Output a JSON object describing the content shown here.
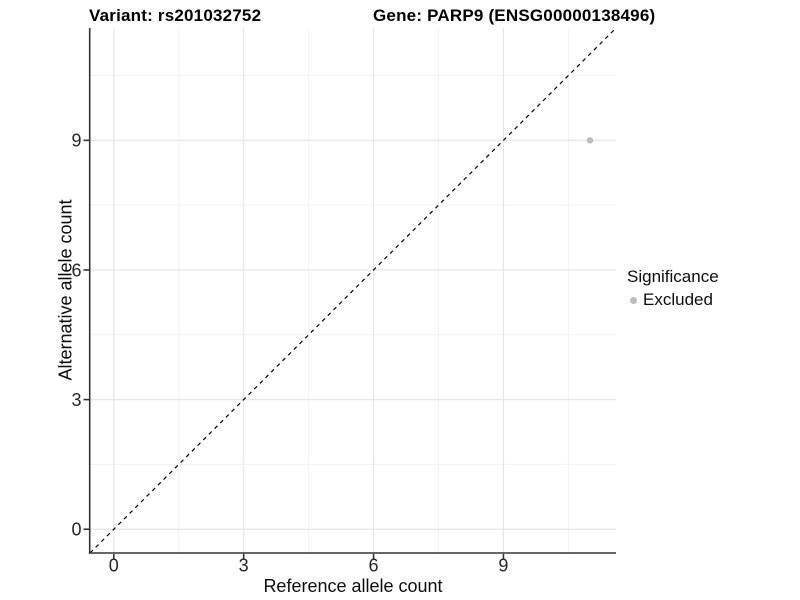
{
  "title": {
    "variant": "Variant: rs201032752",
    "gene": "Gene: PARP9 (ENSG00000138496)"
  },
  "legend": {
    "title": "Significance",
    "items": [
      {
        "label": "Excluded",
        "color": "#bdbdbd"
      }
    ]
  },
  "theme": {
    "background": "#ffffff",
    "grid_major": "#e6e6e6",
    "grid_minor": "#f2f2f2",
    "axis": "#333333",
    "reference_line": "#000000",
    "point": "#bdbdbd",
    "tick_text": "#262626"
  },
  "chart_data": {
    "type": "scatter",
    "title": "Variant: rs201032752   Gene: PARP9 (ENSG00000138496)",
    "xlabel": "Reference allele count",
    "ylabel": "Alternative allele count",
    "xlim": [
      -0.55,
      11.6
    ],
    "ylim": [
      -0.55,
      11.6
    ],
    "xticks": [
      0,
      3,
      6,
      9
    ],
    "yticks": [
      0,
      3,
      6,
      9
    ],
    "xminor": [
      1.5,
      4.5,
      7.5,
      10.5
    ],
    "yminor": [
      1.5,
      4.5,
      7.5,
      10.5
    ],
    "grid": true,
    "legend_position": "right",
    "points": [
      {
        "x": 11,
        "y": 9,
        "series": "Excluded",
        "color": "#bdbdbd"
      }
    ],
    "reference_line": {
      "type": "identity",
      "equation": "y = x",
      "style": "dashed",
      "color": "#000000"
    }
  }
}
